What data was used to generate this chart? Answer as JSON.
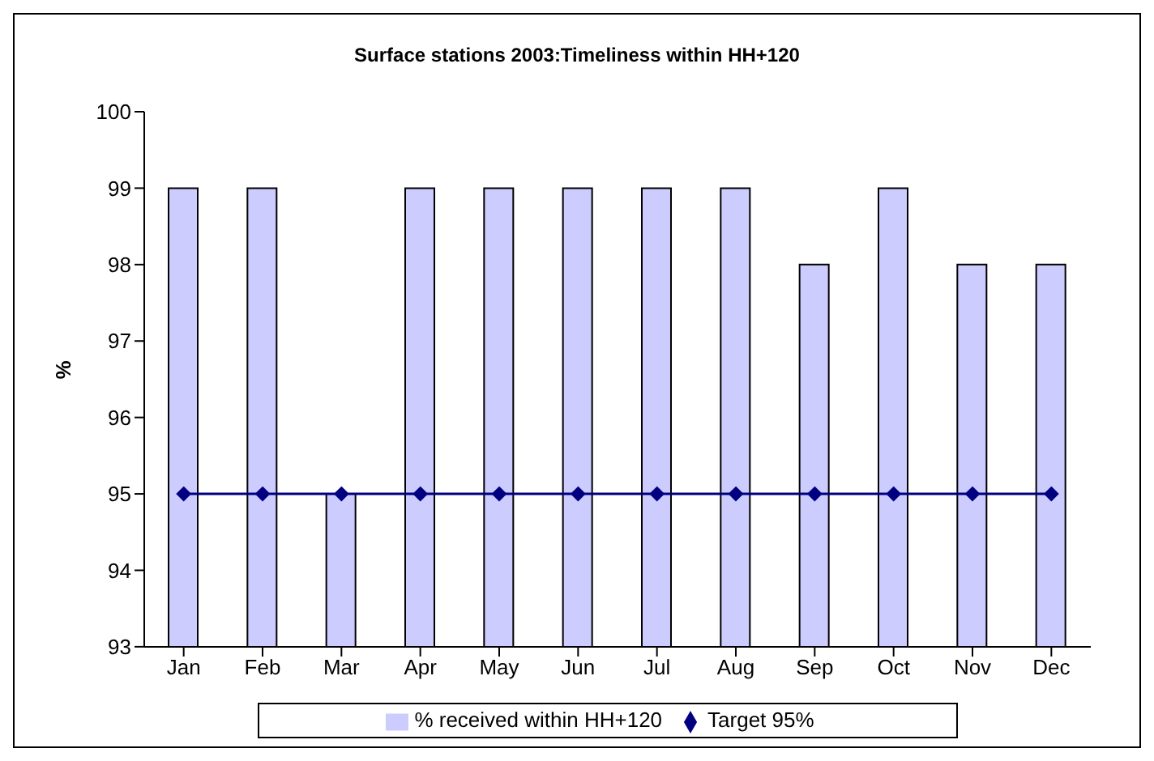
{
  "chart_data": {
    "type": "bar",
    "title": "Surface stations 2003:Timeliness within HH+120",
    "ylabel": "%",
    "categories": [
      "Jan",
      "Feb",
      "Mar",
      "Apr",
      "May",
      "Jun",
      "Jul",
      "Aug",
      "Sep",
      "Oct",
      "Nov",
      "Dec"
    ],
    "series": [
      {
        "name": "% received within HH+120",
        "color": "#ccccff",
        "values": [
          99,
          99,
          95,
          99,
          99,
          99,
          99,
          99,
          98,
          99,
          98,
          98
        ]
      },
      {
        "name": "Target 95%",
        "type": "line",
        "color": "#000080",
        "marker": "diamond",
        "values": [
          95,
          95,
          95,
          95,
          95,
          95,
          95,
          95,
          95,
          95,
          95,
          95
        ]
      }
    ],
    "ylim": [
      93,
      100
    ],
    "yticks": [
      93,
      94,
      95,
      96,
      97,
      98,
      99,
      100
    ],
    "grid": false,
    "legend": "bottom"
  }
}
